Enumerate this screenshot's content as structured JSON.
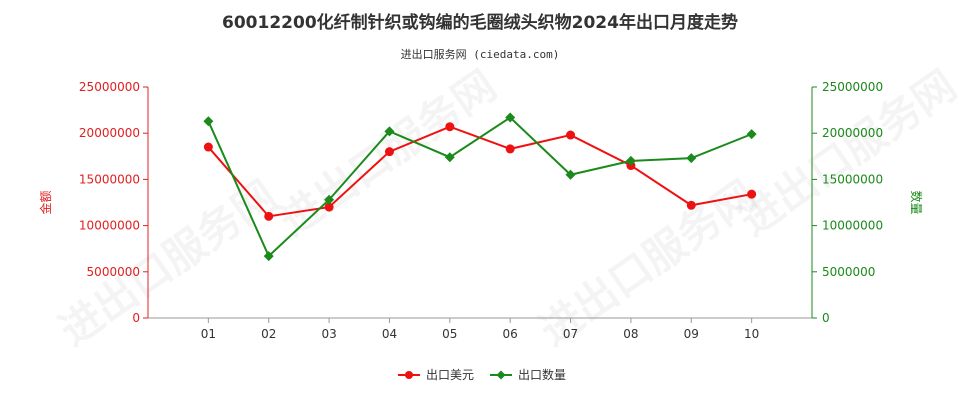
{
  "title": "60012200化纤制针织或钩编的毛圈绒头织物2024年出口月度走势",
  "subtitle": "进出口服务网 (ciedata.com)",
  "watermark": "进出口服务网",
  "chart_data": {
    "type": "line",
    "categories": [
      "01",
      "02",
      "03",
      "04",
      "05",
      "06",
      "07",
      "08",
      "09",
      "10"
    ],
    "y_left": {
      "label": "金额",
      "range": [
        0,
        25000000
      ],
      "ticks": [
        "0",
        "5000000",
        "10000000",
        "15000000",
        "20000000",
        "25000000"
      ],
      "color": "#e02020"
    },
    "y_right": {
      "label": "数量",
      "range": [
        0,
        25000000
      ],
      "ticks": [
        "0",
        "5000000",
        "10000000",
        "15000000",
        "20000000",
        "25000000"
      ],
      "color": "#1a8a1a"
    },
    "series": [
      {
        "name": "出口美元",
        "axis": "left",
        "color": "#ee1111",
        "marker": "circle",
        "values": [
          18500000,
          11000000,
          12000000,
          18000000,
          20700000,
          18300000,
          19800000,
          16500000,
          12200000,
          13400000
        ]
      },
      {
        "name": "出口数量",
        "axis": "right",
        "color": "#1a8a1a",
        "marker": "diamond",
        "values": [
          21300000,
          6700000,
          12800000,
          20200000,
          17400000,
          21700000,
          15500000,
          17000000,
          17300000,
          19900000
        ]
      }
    ],
    "legend_position": "bottom-center",
    "grid": false
  }
}
